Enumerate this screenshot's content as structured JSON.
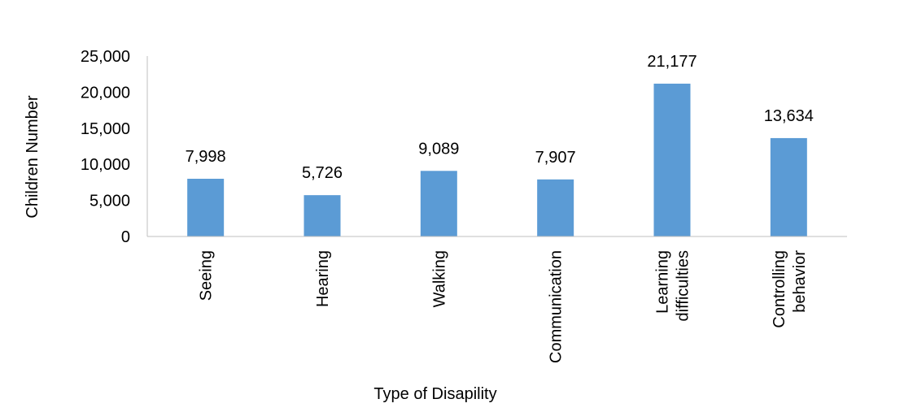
{
  "chart_data": {
    "type": "bar",
    "xlabel": "Type of Disapility",
    "ylabel": "Children Number",
    "ylim": [
      0,
      25000
    ],
    "yticks": [
      "0",
      "5,000",
      "10,000",
      "15,000",
      "20,000",
      "25,000"
    ],
    "ytick_values": [
      0,
      5000,
      10000,
      15000,
      20000,
      25000
    ],
    "categories": [
      [
        "Seeing"
      ],
      [
        "Hearing"
      ],
      [
        "Walking"
      ],
      [
        "Communication"
      ],
      [
        "Learning",
        "difficulties"
      ],
      [
        "Controlling",
        "behavior"
      ]
    ],
    "values": [
      7998,
      5726,
      9089,
      7907,
      21177,
      13634
    ],
    "value_labels": [
      "7,998",
      "5,726",
      "9,089",
      "7,907",
      "21,177",
      "13,634"
    ],
    "bar_color": "#5B9BD5",
    "axis_color": "#BFBFBF",
    "grid": false,
    "legend": "none"
  }
}
